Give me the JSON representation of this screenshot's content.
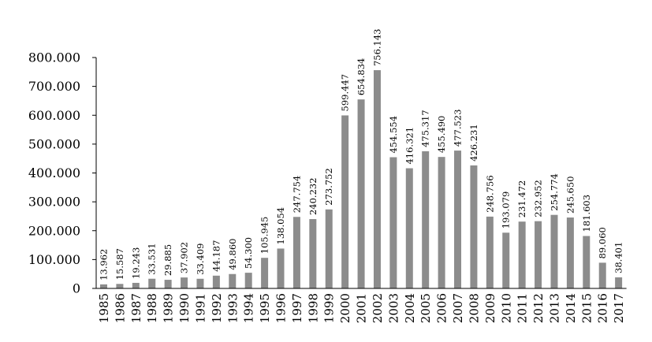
{
  "chart_data": {
    "type": "bar",
    "title": "",
    "xlabel": "",
    "ylabel": "",
    "ylim": [
      0,
      800000
    ],
    "yticks": [
      0,
      100000,
      200000,
      300000,
      400000,
      500000,
      600000,
      700000,
      800000
    ],
    "ytick_labels": [
      "0",
      "100.000",
      "200.000",
      "300.000",
      "400.000",
      "500.000",
      "600.000",
      "700.000",
      "800.000"
    ],
    "grid": false,
    "legend": "none",
    "bar_color": "#8c8c8c",
    "categories": [
      "1985",
      "1986",
      "1987",
      "1988",
      "1989",
      "1990",
      "1991",
      "1992",
      "1993",
      "1994",
      "1995",
      "1996",
      "1997",
      "1998",
      "1999",
      "2000",
      "2001",
      "2002",
      "2003",
      "2004",
      "2005",
      "2006",
      "2007",
      "2008",
      "2009",
      "2010",
      "2011",
      "2012",
      "2013",
      "2014",
      "2015",
      "2016",
      "2017"
    ],
    "values": [
      13962,
      15587,
      19243,
      33531,
      29885,
      37902,
      33409,
      44187,
      49860,
      54300,
      105945,
      138054,
      247754,
      240232,
      273752,
      599447,
      654834,
      756143,
      454554,
      416321,
      475317,
      455490,
      477523,
      426231,
      248756,
      193079,
      231472,
      232952,
      254774,
      245650,
      181603,
      89060,
      38401
    ],
    "data_labels": [
      "13.962",
      "15.587",
      "19.243",
      "33.531",
      "29.885",
      "37.902",
      "33.409",
      "44.187",
      "49.860",
      "54.300",
      "105.945",
      "138.054",
      "247.754",
      "240.232",
      "273.752",
      "599.447",
      "654.834",
      "756.143",
      "454.554",
      "416.321",
      "475.317",
      "455.490",
      "477.523",
      "426.231",
      "248.756",
      "193.079",
      "231.472",
      "232.952",
      "254.774",
      "245.650",
      "181.603",
      "89.060",
      "38.401"
    ]
  }
}
